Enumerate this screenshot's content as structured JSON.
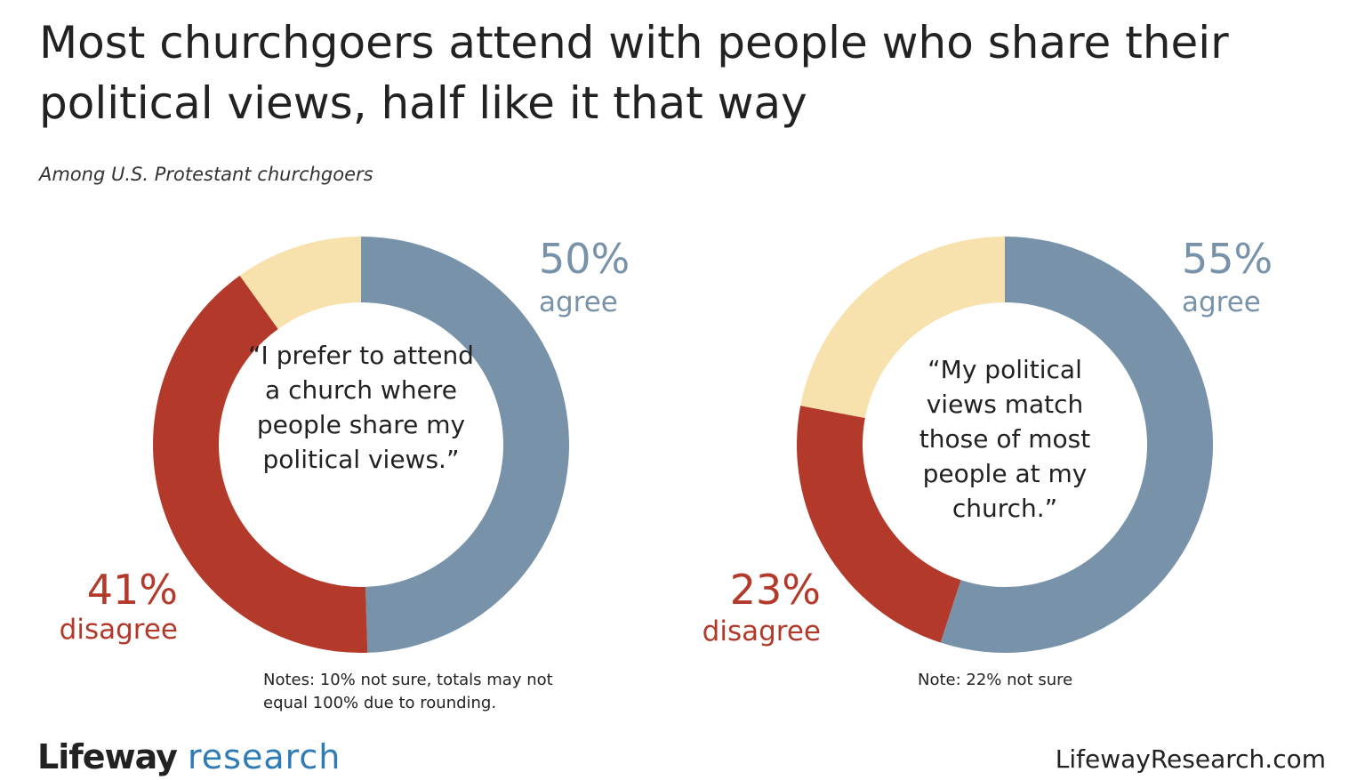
{
  "header": {
    "title": "Most churchgoers attend with people who share their political views, half like it that way",
    "subtitle": "Among U.S. Protestant churchgoers"
  },
  "colors": {
    "agree": "#7893a9",
    "disagree": "#b33a2a",
    "not_sure": "#f7e1ac"
  },
  "chart_data": [
    {
      "type": "pie",
      "variant": "donut",
      "center_text": "“I prefer to attend a church where people share my political views.”",
      "slices": [
        {
          "label": "agree",
          "value": 50,
          "display_value": "50%"
        },
        {
          "label": "disagree",
          "value": 41,
          "display_value": "41%"
        },
        {
          "label": "not sure",
          "value": 10
        }
      ],
      "note": "Notes: 10% not sure, totals may not equal 100% due to rounding."
    },
    {
      "type": "pie",
      "variant": "donut",
      "center_text": "“My political views match those of most people at my church.”",
      "slices": [
        {
          "label": "agree",
          "value": 55,
          "display_value": "55%"
        },
        {
          "label": "disagree",
          "value": 23,
          "display_value": "23%"
        },
        {
          "label": "not sure",
          "value": 22
        }
      ],
      "note": "Note: 22% not sure"
    }
  ],
  "footer": {
    "brand_name": "Lifeway",
    "brand_sub": "research",
    "site": "LifewayResearch.com"
  }
}
